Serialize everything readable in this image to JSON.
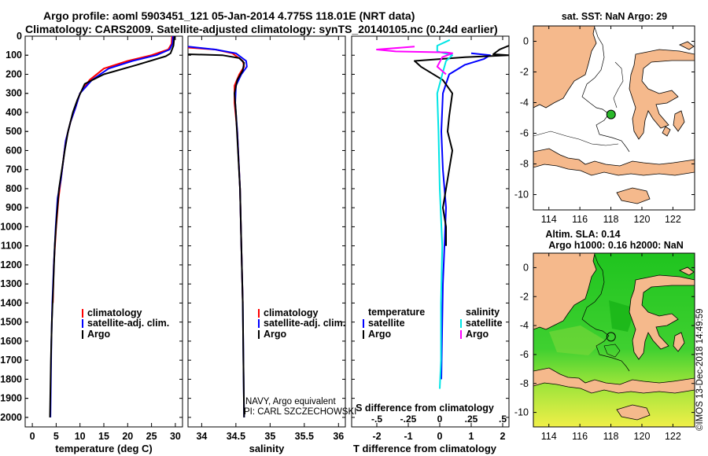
{
  "header": {
    "line1": "Argo profile: aoml 5903451_121 05-Jan-2014 4.775S 118.01E (NRT data)",
    "line2": "Climatology: CARS2009. Satellite-adjusted climatology: synTS_20140105.nc (0.24d earlier)"
  },
  "footer": {
    "credit": "©IMOS 13-Dec-2018 14:49:59",
    "navy_line1": "NAVY, Argo equivalent",
    "navy_line2": "PI: CARL SZCZECHOWSKI"
  },
  "colors": {
    "climatology": "#ff0000",
    "satellite": "#0000ff",
    "argo": "#000000",
    "sal_satellite": "#00e5e5",
    "sal_argo": "#ff00ff",
    "land": "#f5b98c",
    "sea_green": "#22c520",
    "sea_yellow": "#f0f040"
  },
  "legend": {
    "climatology": "climatology",
    "satellite_adj": "satellite-adj. clim.",
    "argo": "Argo",
    "temperature_head": "temperature",
    "salinity_head": "salinity",
    "satellite": "satellite"
  },
  "maps": {
    "sst_title": "sat. SST: NaN Argo: 29",
    "sla_title1": "Altim. SLA: 0.14",
    "sla_title2": "Argo h1000: 0.16 h2000: NaN",
    "lon_ticks": [
      "114",
      "116",
      "118",
      "120",
      "122"
    ],
    "lat_ticks": [
      "0",
      "-2",
      "-4",
      "-6",
      "-8",
      "-10"
    ],
    "lon_range": [
      113,
      123.4
    ],
    "lat_range": [
      -11,
      1
    ],
    "float_lon": 118.01,
    "float_lat": -4.775
  },
  "chart_data": [
    {
      "type": "line",
      "panel": "temperature",
      "xlabel": "temperature (deg C)",
      "ylabel": "",
      "xlim": [
        -1.5,
        31.5
      ],
      "ylim": [
        2050,
        0
      ],
      "x_ticks": [
        0,
        5,
        10,
        15,
        20,
        25,
        30
      ],
      "y_ticks": [
        0,
        100,
        200,
        300,
        400,
        500,
        600,
        700,
        800,
        900,
        1000,
        1100,
        1200,
        1300,
        1400,
        1500,
        1600,
        1700,
        1800,
        1900,
        2000
      ],
      "series": [
        {
          "name": "climatology",
          "color": "#ff0000",
          "points": [
            [
              29.3,
              0
            ],
            [
              29.2,
              40
            ],
            [
              28.5,
              70
            ],
            [
              25,
              100
            ],
            [
              20,
              130
            ],
            [
              15,
              170
            ],
            [
              12,
              230
            ],
            [
              10,
              300
            ],
            [
              9,
              380
            ],
            [
              8,
              450
            ],
            [
              7,
              550
            ],
            [
              6.5,
              650
            ],
            [
              6,
              750
            ],
            [
              5.5,
              850
            ],
            [
              5,
              1000
            ],
            [
              4.5,
              1200
            ],
            [
              4.3,
              1400
            ]
          ]
        },
        {
          "name": "satellite-adj. clim.",
          "color": "#0000ff",
          "points": [
            [
              29.5,
              0
            ],
            [
              29.4,
              40
            ],
            [
              28.8,
              70
            ],
            [
              26,
              100
            ],
            [
              21,
              130
            ],
            [
              16,
              170
            ],
            [
              12.5,
              230
            ],
            [
              10,
              300
            ],
            [
              9,
              380
            ],
            [
              8,
              450
            ],
            [
              7,
              550
            ],
            [
              6.5,
              650
            ],
            [
              6,
              750
            ],
            [
              5.3,
              850
            ],
            [
              4.9,
              1000
            ],
            [
              4.5,
              1200
            ],
            [
              4.2,
              1400
            ],
            [
              4,
              1600
            ],
            [
              3.9,
              1800
            ],
            [
              3.8,
              2000
            ]
          ]
        },
        {
          "name": "Argo",
          "color": "#000000",
          "points": [
            [
              29.8,
              0
            ],
            [
              29.6,
              50
            ],
            [
              29,
              90
            ],
            [
              28,
              105
            ],
            [
              22,
              150
            ],
            [
              15,
              200
            ],
            [
              11,
              250
            ],
            [
              9.5,
              330
            ],
            [
              8.5,
              400
            ],
            [
              7.5,
              500
            ],
            [
              6.8,
              600
            ],
            [
              6.2,
              700
            ],
            [
              5.6,
              800
            ],
            [
              5.1,
              950
            ],
            [
              4.7,
              1100
            ],
            [
              4.4,
              1300
            ],
            [
              4.1,
              1500
            ],
            [
              3.9,
              1700
            ],
            [
              3.8,
              1850
            ],
            [
              3.7,
              2000
            ]
          ]
        }
      ]
    },
    {
      "type": "line",
      "panel": "salinity",
      "xlabel": "salinity",
      "xlim": [
        33.8,
        36.1
      ],
      "ylim": [
        2050,
        0
      ],
      "x_ticks": [
        34,
        34.5,
        35,
        35.5,
        36
      ],
      "series": [
        {
          "name": "climatology",
          "color": "#ff0000",
          "points": [
            [
              33.8,
              60
            ],
            [
              34.2,
              70
            ],
            [
              34.45,
              90
            ],
            [
              34.6,
              130
            ],
            [
              34.62,
              160
            ],
            [
              34.55,
              200
            ],
            [
              34.48,
              260
            ],
            [
              34.48,
              350
            ],
            [
              34.52,
              500
            ],
            [
              34.56,
              800
            ],
            [
              34.58,
              1100
            ],
            [
              34.6,
              1400
            ]
          ]
        },
        {
          "name": "satellite-adj. clim.",
          "color": "#0000ff",
          "points": [
            [
              33.8,
              55
            ],
            [
              34.2,
              70
            ],
            [
              34.5,
              90
            ],
            [
              34.65,
              130
            ],
            [
              34.66,
              160
            ],
            [
              34.58,
              200
            ],
            [
              34.5,
              260
            ],
            [
              34.49,
              350
            ],
            [
              34.52,
              500
            ],
            [
              34.56,
              800
            ],
            [
              34.58,
              1100
            ],
            [
              34.6,
              1400
            ],
            [
              34.61,
              1700
            ],
            [
              34.62,
              2000
            ]
          ]
        },
        {
          "name": "Argo",
          "color": "#000000",
          "points": [
            [
              33.8,
              95
            ],
            [
              34.3,
              100
            ],
            [
              34.55,
              115
            ],
            [
              34.62,
              140
            ],
            [
              34.6,
              180
            ],
            [
              34.52,
              230
            ],
            [
              34.48,
              300
            ],
            [
              34.5,
              400
            ],
            [
              34.53,
              600
            ],
            [
              34.56,
              800
            ],
            [
              34.58,
              1100
            ],
            [
              34.6,
              1400
            ],
            [
              34.61,
              1700
            ],
            [
              34.62,
              2000
            ]
          ]
        }
      ]
    },
    {
      "type": "line",
      "panel": "differences",
      "xlabel": "T difference from climatology",
      "x2label": "S difference from climatology",
      "xlim": [
        -2.8,
        2.2
      ],
      "x2lim": [
        -0.7,
        0.55
      ],
      "ylim": [
        2050,
        0
      ],
      "x_ticks": [
        -2,
        -1,
        0,
        1,
        2
      ],
      "x2_ticks": [
        -0.5,
        -0.25,
        0,
        0.25,
        0.5
      ],
      "series": [
        {
          "name": "temperature satellite",
          "axis": "T",
          "color": "#0000ff",
          "points": [
            [
              1,
              90
            ],
            [
              1.6,
              100
            ],
            [
              1.4,
              120
            ],
            [
              0.8,
              150
            ],
            [
              0.3,
              200
            ],
            [
              0.1,
              300
            ],
            [
              0.05,
              500
            ],
            [
              0.1,
              700
            ],
            [
              0.2,
              900
            ],
            [
              0.15,
              1100
            ],
            [
              0.1,
              1300
            ],
            [
              0.08,
              1500
            ],
            [
              0.05,
              1800
            ]
          ]
        },
        {
          "name": "temperature Argo",
          "axis": "T",
          "color": "#000000",
          "points": [
            [
              2.2,
              50
            ],
            [
              1.9,
              70
            ],
            [
              1.7,
              95
            ],
            [
              2.2,
              100
            ],
            [
              0.8,
              110
            ],
            [
              -0.8,
              130
            ],
            [
              -0.6,
              160
            ],
            [
              0.1,
              230
            ],
            [
              0.4,
              300
            ],
            [
              0.3,
              420
            ],
            [
              0.25,
              500
            ],
            [
              0.4,
              600
            ],
            [
              0.3,
              700
            ],
            [
              0.2,
              800
            ],
            [
              0.1,
              900
            ],
            [
              0.2,
              1000
            ],
            [
              0.2,
              1100
            ]
          ]
        },
        {
          "name": "salinity satellite",
          "axis": "S",
          "color": "#00e5e5",
          "points": [
            [
              0.08,
              20
            ],
            [
              -0.02,
              50
            ],
            [
              -0.02,
              80
            ],
            [
              0.1,
              100
            ],
            [
              0.05,
              130
            ],
            [
              0.02,
              200
            ],
            [
              -0.02,
              300
            ],
            [
              -0.01,
              500
            ],
            [
              0,
              800
            ],
            [
              0.02,
              1100
            ],
            [
              0.01,
              1400
            ],
            [
              0.01,
              1700
            ],
            [
              0,
              1850
            ]
          ]
        },
        {
          "name": "salinity Argo",
          "axis": "S",
          "color": "#ff00ff",
          "points": [
            [
              -0.2,
              55
            ],
            [
              -0.5,
              70
            ],
            [
              -0.35,
              80
            ],
            [
              0.05,
              85
            ],
            [
              0.1,
              90
            ],
            [
              0.02,
              110
            ],
            [
              -0.02,
              160
            ],
            [
              0.05,
              200
            ]
          ]
        }
      ]
    }
  ]
}
